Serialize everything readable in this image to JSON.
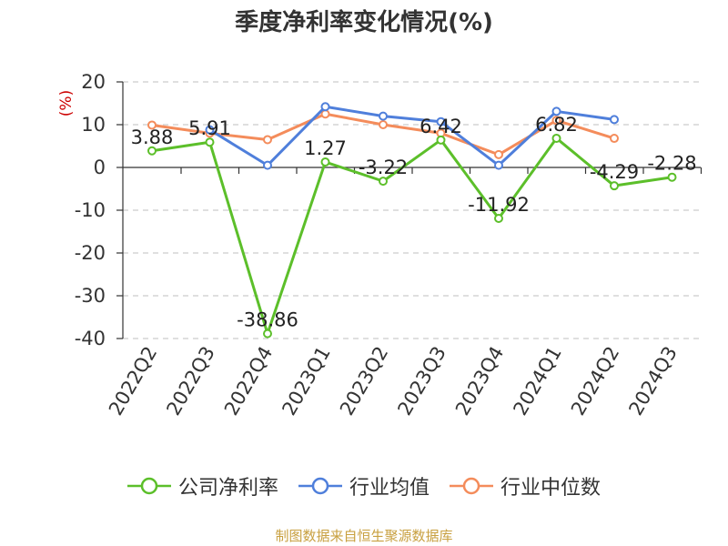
{
  "title": "季度净利率变化情况(%)",
  "source": "制图数据来自恒生聚源数据库",
  "colors": {
    "company": "#5cbf2a",
    "industry_avg": "#4f7fdb",
    "industry_median": "#f48c5b",
    "axis_label": "#cc0000",
    "grid": "#cccccc",
    "text": "#333333"
  },
  "chart_data": {
    "type": "line",
    "title": "季度净利率变化情况(%)",
    "ylabel": "(%)",
    "xlabel": "",
    "ylim": [
      -40,
      20
    ],
    "yticks": [
      20,
      10,
      0,
      -10,
      -20,
      -30,
      -40
    ],
    "categories": [
      "2022Q2",
      "2022Q3",
      "2022Q4",
      "2023Q1",
      "2023Q2",
      "2023Q3",
      "2023Q4",
      "2024Q1",
      "2024Q2",
      "2024Q3"
    ],
    "series": [
      {
        "name": "公司净利率",
        "values": [
          3.88,
          5.91,
          -38.86,
          1.27,
          -3.22,
          6.42,
          -11.92,
          6.82,
          -4.29,
          -2.28
        ],
        "labels": [
          "3.88",
          "5.91",
          "-38.86",
          "1.27",
          "-3.22",
          "6.42",
          "-11.92",
          "6.82",
          "-4.29",
          "-2.28"
        ]
      },
      {
        "name": "行业均值",
        "values": [
          null,
          8.8,
          0.5,
          14.2,
          12.0,
          10.7,
          0.5,
          13.1,
          11.2,
          null
        ]
      },
      {
        "name": "行业中位数",
        "values": [
          9.9,
          8.0,
          6.5,
          12.5,
          10.0,
          8.0,
          3.0,
          11.0,
          6.8,
          null
        ]
      }
    ],
    "grid": true,
    "legend": "bottom"
  }
}
